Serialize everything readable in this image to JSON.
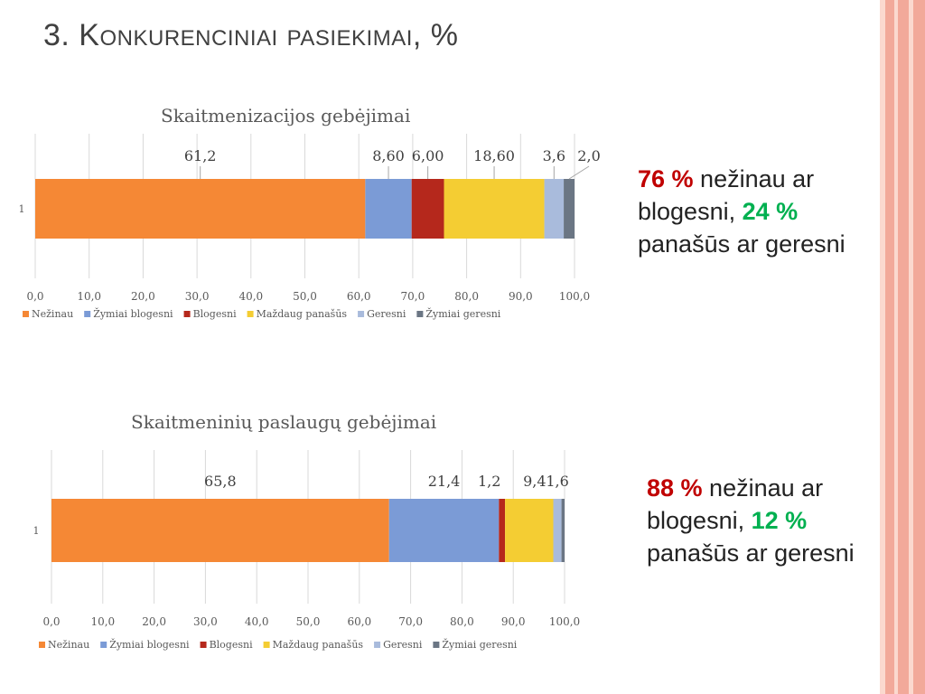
{
  "slide": {
    "title": "3. Konkurenciniai pasiekimai, %"
  },
  "colors": {
    "Nežinau": "#f58835",
    "Žymiai blogesni": "#7b9bd6",
    "Blogesni": "#b5281c",
    "Maždaug panašūs": "#f4cd33",
    "Geresni": "#a9bbdc",
    "Žymiai geresni": "#6b7684",
    "stripe_dark": "#f2a99a",
    "stripe_light": "#fbd9cf"
  },
  "chart_data": [
    {
      "type": "bar",
      "orientation": "horizontal",
      "stacked": true,
      "title": "Skaitmenizacijos gebėjimai",
      "categories": [
        "1"
      ],
      "xlim": [
        0,
        100
      ],
      "x_ticks": [
        "0,0",
        "10,0",
        "20,0",
        "30,0",
        "40,0",
        "50,0",
        "60,0",
        "70,0",
        "80,0",
        "90,0",
        "100,0"
      ],
      "grid": true,
      "legend_position": "bottom",
      "series": [
        {
          "name": "Nežinau",
          "values": [
            61.2
          ],
          "label": "61,2"
        },
        {
          "name": "Žymiai blogesni",
          "values": [
            8.6
          ],
          "label": "8,60"
        },
        {
          "name": "Blogesni",
          "values": [
            6.0
          ],
          "label": "6,00"
        },
        {
          "name": "Maždaug panašūs",
          "values": [
            18.6
          ],
          "label": "18,60"
        },
        {
          "name": "Geresni",
          "values": [
            3.6
          ],
          "label": "3,6"
        },
        {
          "name": "Žymiai geresni",
          "values": [
            2.0
          ],
          "label": "2,0"
        }
      ]
    },
    {
      "type": "bar",
      "orientation": "horizontal",
      "stacked": true,
      "title": "Skaitmeninių paslaugų gebėjimai",
      "categories": [
        "1"
      ],
      "xlim": [
        0,
        100
      ],
      "x_ticks": [
        "0,0",
        "10,0",
        "20,0",
        "30,0",
        "40,0",
        "50,0",
        "60,0",
        "70,0",
        "80,0",
        "90,0",
        "100,0"
      ],
      "grid": true,
      "legend_position": "bottom",
      "series": [
        {
          "name": "Nežinau",
          "values": [
            65.8
          ],
          "label": "65,8"
        },
        {
          "name": "Žymiai blogesni",
          "values": [
            21.4
          ],
          "label": "21,4"
        },
        {
          "name": "Blogesni",
          "values": [
            1.2
          ],
          "label": "1,2"
        },
        {
          "name": "Maždaug panašūs",
          "values": [
            9.4
          ],
          "label": "9,4"
        },
        {
          "name": "Geresni",
          "values": [
            1.6
          ],
          "label": "1,6"
        },
        {
          "name": "Žymiai geresni",
          "values": [
            0.6
          ],
          "label": ""
        }
      ]
    }
  ],
  "notes": [
    {
      "bad_pct": "76 %",
      "bad_text": " nežinau ar blogesni, ",
      "good_pct": "24 %",
      "good_text": " panašūs ar geresni"
    },
    {
      "bad_pct": "88 %",
      "bad_text": " nežinau ar blogesni, ",
      "good_pct": "12 %",
      "good_text": " panašūs ar geresni"
    }
  ]
}
